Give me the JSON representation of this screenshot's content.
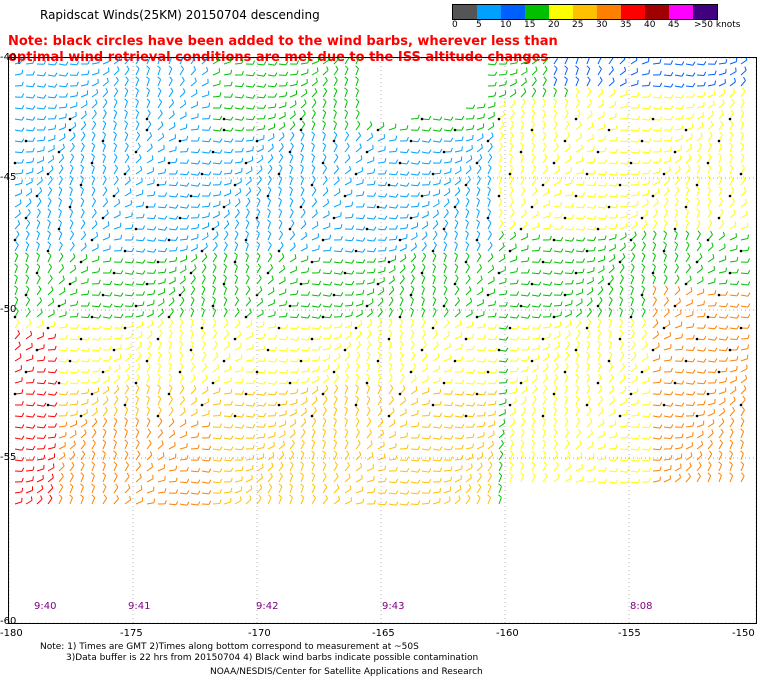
{
  "header": {
    "title": "Rapidscat Winds(25KM) 20150704 descending"
  },
  "legend": {
    "ticks": [
      "0",
      "5",
      "10",
      "15",
      "20",
      "25",
      "30",
      "35",
      "40",
      "45",
      ">50 knots"
    ],
    "colors": [
      "#555555",
      "#00a0ff",
      "#0060ff",
      "#00c000",
      "#ffff00",
      "#ffc000",
      "#ff8000",
      "#ff0000",
      "#a00000",
      "#ff00ff",
      "#400080"
    ]
  },
  "note": {
    "text": "Note: black circles have been added to the wind barbs, wherever less than optimal wind retrieval conditions are met due to the ISS altitude changes"
  },
  "axes": {
    "lat_labels": [
      "-40",
      "-45",
      "-50",
      "-55",
      "-60"
    ],
    "lon_labels": [
      "-180",
      "-175",
      "-170",
      "-165",
      "-160",
      "-155",
      "-150"
    ],
    "time_labels": [
      "9:40",
      "9:41",
      "9:42",
      "9:43",
      "8:08"
    ]
  },
  "footer": {
    "line1": "Note: 1) Times are GMT 2)Times along bottom correspond to measurement at ~50S",
    "line2": "3)Data buffer is 22 hrs from 20150704 4) Black wind barbs indicate possible contamination",
    "line3": "NOAA/NESDIS/Center for Satellite Applications and Research"
  }
}
